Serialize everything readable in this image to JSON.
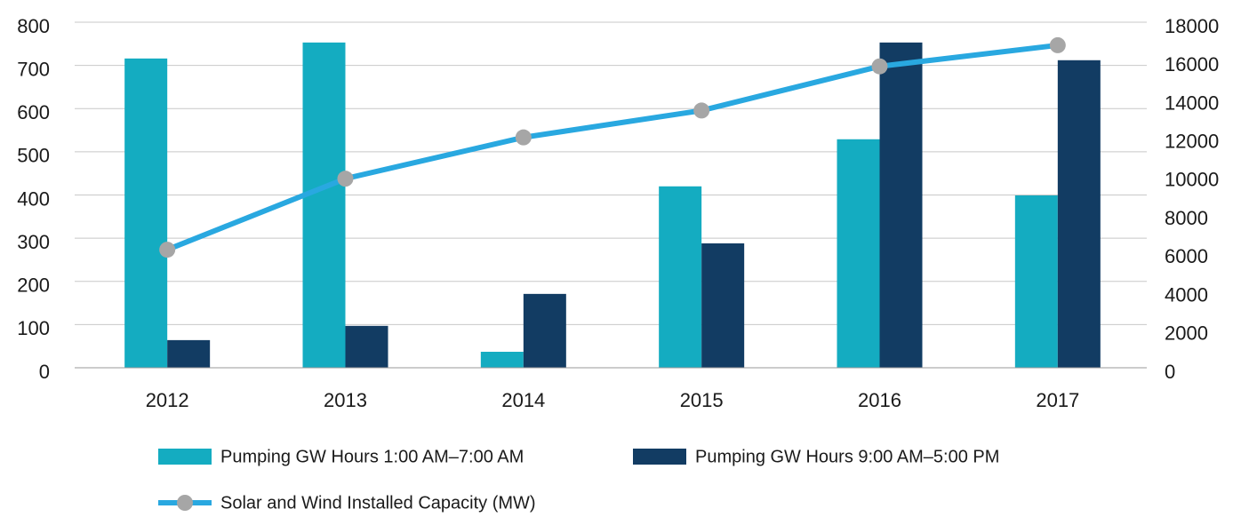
{
  "chart_data": {
    "type": "bar_line",
    "categories": [
      "2012",
      "2013",
      "2014",
      "2015",
      "2016",
      "2017"
    ],
    "series": [
      {
        "name": "Pumping GW Hours 1:00 AM–7:00 AM",
        "color": "#14acc1",
        "type": "bar",
        "values": [
          716,
          753,
          37,
          420,
          529,
          399
        ]
      },
      {
        "name": "Pumping GW Hours 9:00 AM–5:00 PM",
        "color": "#123c63",
        "type": "bar",
        "values": [
          64,
          97,
          171,
          288,
          753,
          712
        ]
      },
      {
        "name": "Solar and Wind Installed Capacity (MW)",
        "color": "#29a8e0",
        "marker_color": "#a6a6a6",
        "type": "line",
        "axis": "y2",
        "values": [
          6150,
          9850,
          12000,
          13400,
          15700,
          16800
        ]
      }
    ],
    "ylim": [
      0,
      800
    ],
    "yticks": [
      0,
      100,
      200,
      300,
      400,
      500,
      600,
      700,
      800
    ],
    "y2lim": [
      0,
      18000
    ],
    "y2ticks": [
      0,
      2000,
      4000,
      6000,
      8000,
      10000,
      12000,
      14000,
      16000,
      18000
    ],
    "grid": true
  }
}
